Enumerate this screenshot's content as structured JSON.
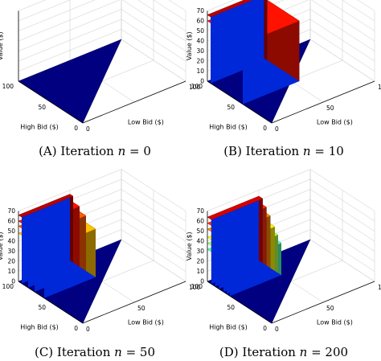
{
  "chart_data": [
    {
      "type": "surface3d",
      "caption": {
        "prefix": "(A) Iteration ",
        "var": "n",
        "suffix": " = 0"
      },
      "axes": {
        "x": {
          "label": "Low Bid ($)",
          "range": [
            0,
            100
          ],
          "ticks": [
            "0",
            "100"
          ]
        },
        "y": {
          "label": "High Bid ($)",
          "range": [
            0,
            100
          ],
          "ticks": [
            "0",
            "50",
            "100"
          ]
        },
        "z": {
          "label": "Value ($)",
          "range": [
            0,
            70
          ],
          "ticks": [
            "0",
            "10",
            "20",
            "30",
            "40",
            "50",
            "60",
            "70"
          ]
        }
      },
      "grid": true,
      "show_z_ticks": false,
      "colormap": "jet",
      "colorbar_range": [
        0,
        70
      ],
      "surface": [
        {
          "low_bid": [
            0,
            100
          ],
          "high_bid_from": "low_bid",
          "high_bid_to": 100,
          "value": 0
        }
      ]
    },
    {
      "type": "surface3d",
      "caption": {
        "prefix": "(B) Iteration ",
        "var": "n",
        "suffix": " = 10"
      },
      "axes": {
        "x": {
          "label": "Low Bid ($)",
          "range": [
            0,
            100
          ],
          "ticks": [
            "0",
            "50",
            "100"
          ]
        },
        "y": {
          "label": "High Bid ($)",
          "range": [
            0,
            100
          ],
          "ticks": [
            "0",
            "50",
            "100"
          ]
        },
        "z": {
          "label": "Value ($)",
          "range": [
            0,
            70
          ],
          "ticks": [
            "0",
            "10",
            "20",
            "30",
            "40",
            "50",
            "60",
            "70"
          ]
        }
      },
      "grid": true,
      "show_z_ticks": true,
      "colormap": "jet",
      "colorbar_range": [
        0,
        70
      ],
      "surface": [
        {
          "low_bid": [
            0,
            100
          ],
          "high_bid_from": "low_bid",
          "high_bid_to": 100,
          "value": 0
        },
        {
          "low_bid": [
            0,
            55
          ],
          "high_bid_from": 45,
          "high_bid_to": 100,
          "value": 60
        },
        {
          "low_bid": [
            0,
            55
          ],
          "high_bid_from": 95,
          "high_bid_to": 100,
          "value": 66
        }
      ]
    },
    {
      "type": "surface3d",
      "caption": {
        "prefix": "(C) Iteration ",
        "var": "n",
        "suffix": " = 50"
      },
      "axes": {
        "x": {
          "label": "Low Bid ($)",
          "range": [
            0,
            100
          ],
          "ticks": [
            "0",
            "50",
            "100"
          ]
        },
        "y": {
          "label": "High Bid ($)",
          "range": [
            0,
            100
          ],
          "ticks": [
            "0",
            "50",
            "100"
          ]
        },
        "z": {
          "label": "Value ($)",
          "range": [
            0,
            70
          ],
          "ticks": [
            "0",
            "10",
            "20",
            "30",
            "40",
            "50",
            "60",
            "70"
          ]
        }
      },
      "grid": true,
      "show_z_ticks": true,
      "colormap": "jet",
      "colorbar_range": [
        0,
        70
      ],
      "surface": [
        {
          "low_bid": [
            0,
            100
          ],
          "high_bid_from": "low_bid",
          "high_bid_to": 100,
          "value": 0
        },
        {
          "low_bid": [
            0,
            50
          ],
          "high_bid_from": 60,
          "high_bid_to": 100,
          "value": 48
        },
        {
          "low_bid": [
            0,
            50
          ],
          "high_bid_from": 75,
          "high_bid_to": 100,
          "value": 55
        },
        {
          "low_bid": [
            0,
            50
          ],
          "high_bid_from": 85,
          "high_bid_to": 100,
          "value": 60
        },
        {
          "low_bid": [
            0,
            50
          ],
          "high_bid_from": 95,
          "high_bid_to": 100,
          "value": 66
        }
      ]
    },
    {
      "type": "surface3d",
      "caption": {
        "prefix": "(D) Iteration ",
        "var": "n",
        "suffix": " = 200"
      },
      "axes": {
        "x": {
          "label": "Low Bid ($)",
          "range": [
            0,
            100
          ],
          "ticks": [
            "0",
            "50",
            "100"
          ]
        },
        "y": {
          "label": "High Bid ($)",
          "range": [
            0,
            100
          ],
          "ticks": [
            "0",
            "50",
            "100"
          ]
        },
        "z": {
          "label": "Value ($)",
          "range": [
            0,
            70
          ],
          "ticks": [
            "0",
            "10",
            "20",
            "30",
            "40",
            "50",
            "60",
            "70"
          ]
        }
      },
      "grid": true,
      "show_z_ticks": true,
      "colormap": "jet",
      "colorbar_range": [
        0,
        70
      ],
      "surface": [
        {
          "low_bid": [
            0,
            100
          ],
          "high_bid_from": "low_bid",
          "high_bid_to": 100,
          "value": 0
        },
        {
          "low_bid": [
            0,
            50
          ],
          "high_bid_from": 65,
          "high_bid_to": 100,
          "value": 32
        },
        {
          "low_bid": [
            0,
            50
          ],
          "high_bid_from": 70,
          "high_bid_to": 100,
          "value": 38
        },
        {
          "low_bid": [
            0,
            50
          ],
          "high_bid_from": 75,
          "high_bid_to": 100,
          "value": 44
        },
        {
          "low_bid": [
            0,
            50
          ],
          "high_bid_from": 82,
          "high_bid_to": 100,
          "value": 52
        },
        {
          "low_bid": [
            0,
            50
          ],
          "high_bid_from": 88,
          "high_bid_to": 100,
          "value": 58
        },
        {
          "low_bid": [
            0,
            50
          ],
          "high_bid_from": 94,
          "high_bid_to": 100,
          "value": 64
        }
      ]
    }
  ]
}
